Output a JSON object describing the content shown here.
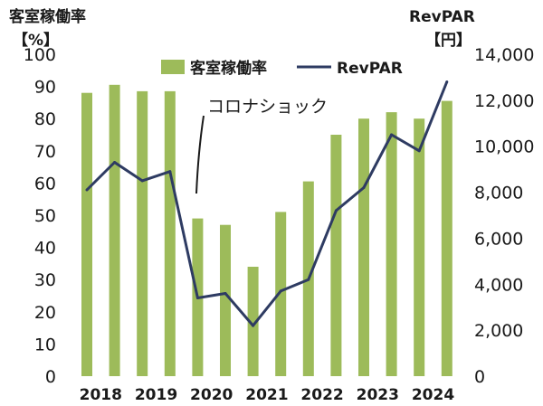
{
  "chart_data": {
    "type": "bar+line",
    "left_axis": {
      "title_line1": "客室稼働率",
      "title_line2": "【%】",
      "ylim": [
        0,
        100
      ],
      "ticks": [
        "100",
        "90",
        "80",
        "70",
        "60",
        "50",
        "40",
        "30",
        "20",
        "10",
        "0"
      ]
    },
    "right_axis": {
      "title_line1": "RevPAR",
      "title_line2": "【円】",
      "ylim": [
        0,
        14000
      ],
      "ticks": [
        "14,000",
        "12,000",
        "10,000",
        "8,000",
        "6,000",
        "4,000",
        "2,000",
        "0"
      ]
    },
    "x_labels": [
      "2018",
      "2019",
      "2020",
      "2021",
      "2022",
      "2023",
      "2024"
    ],
    "legend": {
      "position": "top-center"
    },
    "series": [
      {
        "name": "客室稼働率",
        "type": "bar",
        "axis": "left",
        "color": "#9dbb5a",
        "values": [
          88,
          90.5,
          88.5,
          88.5,
          49,
          47,
          34,
          51,
          60.5,
          75,
          80,
          82,
          80,
          85.5
        ]
      },
      {
        "name": "RevPAR",
        "type": "line",
        "axis": "right",
        "color": "#2e3b62",
        "values": [
          8100,
          9300,
          8500,
          8900,
          3400,
          3600,
          2200,
          3700,
          4200,
          7200,
          8200,
          10500,
          9800,
          12800
        ]
      }
    ],
    "annotations": [
      {
        "text": "コロナショック",
        "target_index": 4
      }
    ]
  }
}
